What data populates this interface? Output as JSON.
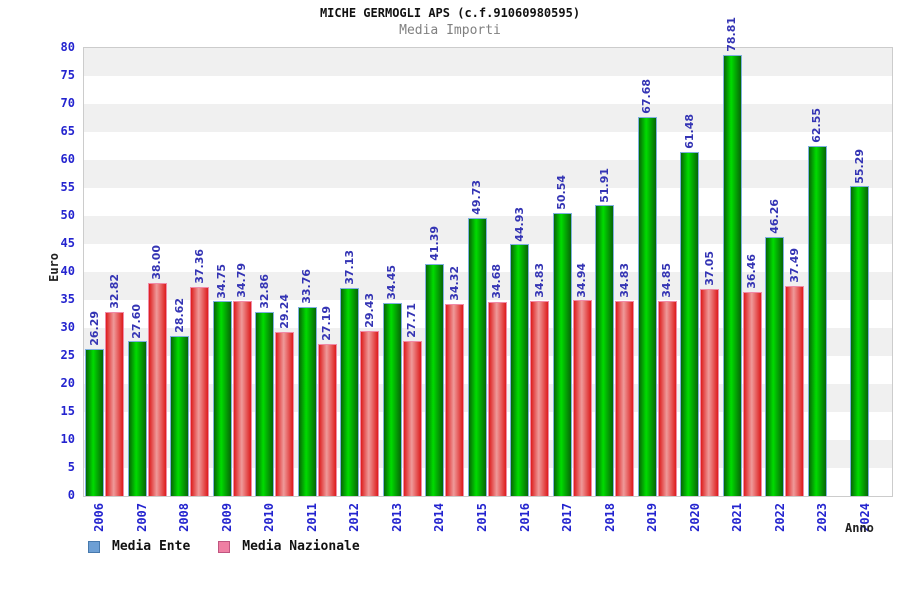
{
  "title": "MICHE GERMOGLI APS (c.f.91060980595)",
  "subtitle": "Media Importi",
  "y_axis": {
    "label": "Euro",
    "min": 0,
    "max": 80,
    "tick_step": 5,
    "ticks": [
      0,
      5,
      10,
      15,
      20,
      25,
      30,
      35,
      40,
      45,
      50,
      55,
      60,
      65,
      70,
      75,
      80
    ],
    "tick_color": "#2424cf"
  },
  "x_axis": {
    "label": "Anno",
    "tick_color": "#2424cf"
  },
  "legend": [
    {
      "label": "Media Ente",
      "swatch": "#6d9fd4",
      "swatch_border": "#4779ad"
    },
    {
      "label": "Media Nazionale",
      "swatch": "#ef7fa3",
      "swatch_border": "#c05580"
    }
  ],
  "colors": {
    "green_edge": "#076607",
    "green_mid": "#00dc00",
    "green_outline": "#7fb0e0",
    "red_edge": "#dd1c1c",
    "red_mid": "#ef9a9a",
    "red_outline": "#f08ba8",
    "band_gray": "#f0f0f0",
    "plot_border": "#cccccc",
    "value_label": "#3434b4",
    "title": "#111111",
    "subtitle": "#808080"
  },
  "chart_data": {
    "type": "bar",
    "title": "MICHE GERMOGLI APS (c.f.91060980595)",
    "subtitle": "Media Importi",
    "xlabel": "Anno",
    "ylabel": "Euro",
    "ylim": [
      0,
      80
    ],
    "grid": "horizontal-bands-alternating",
    "legend_position": "bottom-left",
    "value_labels": "rotated-90-above-bars",
    "categories": [
      "2006",
      "2007",
      "2008",
      "2009",
      "2010",
      "2011",
      "2012",
      "2013",
      "2014",
      "2015",
      "2016",
      "2017",
      "2018",
      "2019",
      "2020",
      "2021",
      "2022",
      "2023",
      "2024"
    ],
    "series": [
      {
        "name": "Media Ente",
        "values": [
          26.29,
          27.6,
          28.62,
          34.75,
          32.86,
          33.76,
          37.13,
          34.45,
          41.39,
          49.73,
          44.93,
          50.54,
          51.91,
          67.68,
          61.48,
          78.81,
          46.26,
          62.55,
          55.29
        ]
      },
      {
        "name": "Media Nazionale",
        "values": [
          32.82,
          38.0,
          37.36,
          34.79,
          29.24,
          27.19,
          29.43,
          27.71,
          34.32,
          34.68,
          34.83,
          34.94,
          34.83,
          34.85,
          37.05,
          36.46,
          37.49,
          null,
          null
        ]
      }
    ]
  }
}
